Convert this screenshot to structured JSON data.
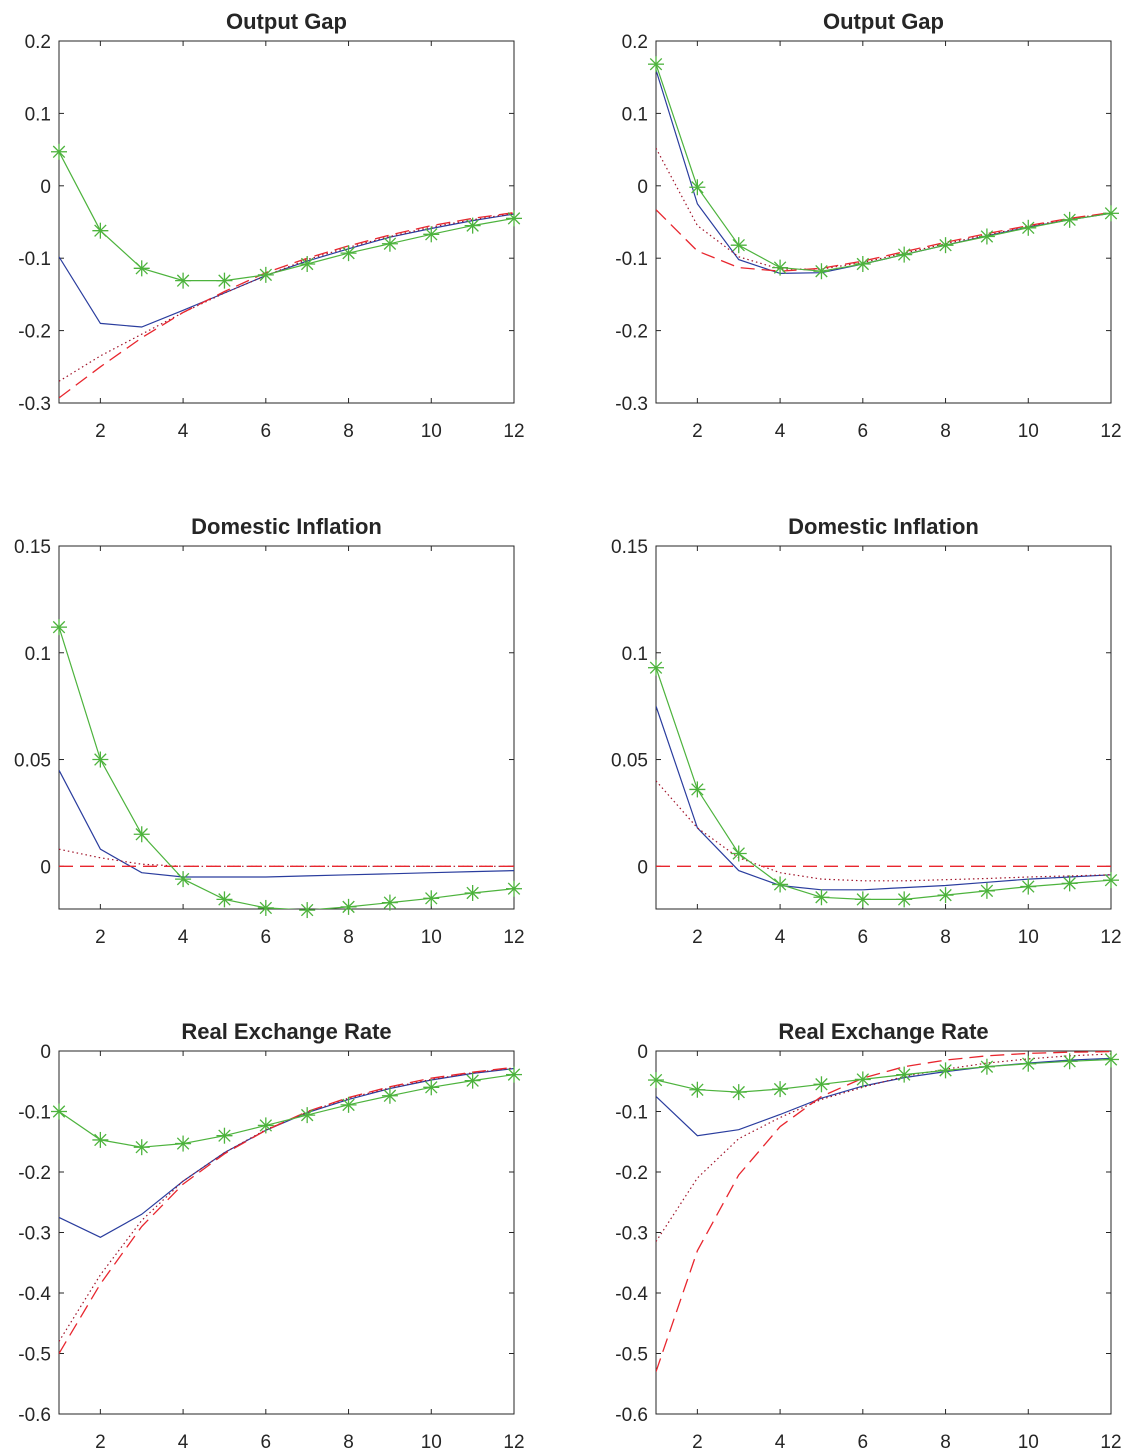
{
  "chart_data": [
    {
      "type": "line",
      "title": "Output Gap",
      "xlabel": "",
      "ylabel": "",
      "xlim": [
        1,
        12
      ],
      "ylim": [
        -0.3,
        0.2
      ],
      "xticks": [
        2,
        4,
        6,
        8,
        10,
        12
      ],
      "yticks": [
        -0.3,
        -0.2,
        -0.1,
        0,
        0.1,
        0.2
      ],
      "ytick_labels": [
        "-0.3",
        "-0.2",
        "-0.1",
        "0",
        "0.1",
        "0.2"
      ],
      "grid": false,
      "x": [
        1,
        2,
        3,
        4,
        5,
        6,
        7,
        8,
        9,
        10,
        11,
        12
      ],
      "series": [
        {
          "style": "solid",
          "color": "#2a3d9e",
          "values": [
            -0.098,
            -0.19,
            -0.195,
            -0.172,
            -0.148,
            -0.124,
            -0.104,
            -0.087,
            -0.071,
            -0.059,
            -0.048,
            -0.039
          ]
        },
        {
          "style": "dotted",
          "color": "#a0142a",
          "values": [
            -0.27,
            -0.235,
            -0.205,
            -0.175,
            -0.148,
            -0.124,
            -0.102,
            -0.085,
            -0.07,
            -0.057,
            -0.047,
            -0.038
          ]
        },
        {
          "style": "dashed",
          "color": "#e8262e",
          "values": [
            -0.293,
            -0.25,
            -0.21,
            -0.175,
            -0.146,
            -0.12,
            -0.1,
            -0.083,
            -0.068,
            -0.055,
            -0.045,
            -0.037
          ]
        },
        {
          "style": "marker",
          "color": "#4db33d",
          "values": [
            0.047,
            -0.062,
            -0.114,
            -0.131,
            -0.131,
            -0.123,
            -0.108,
            -0.093,
            -0.08,
            -0.067,
            -0.055,
            -0.045
          ]
        }
      ]
    },
    {
      "type": "line",
      "title": "Output Gap",
      "xlabel": "",
      "ylabel": "",
      "xlim": [
        1,
        12
      ],
      "ylim": [
        -0.3,
        0.2
      ],
      "xticks": [
        2,
        4,
        6,
        8,
        10,
        12
      ],
      "yticks": [
        -0.3,
        -0.2,
        -0.1,
        0,
        0.1,
        0.2
      ],
      "ytick_labels": [
        "-0.3",
        "-0.2",
        "-0.1",
        "0",
        "0.1",
        "0.2"
      ],
      "grid": false,
      "x": [
        1,
        2,
        3,
        4,
        5,
        6,
        7,
        8,
        9,
        10,
        11,
        12
      ],
      "series": [
        {
          "style": "solid",
          "color": "#2a3d9e",
          "values": [
            0.16,
            -0.025,
            -0.102,
            -0.121,
            -0.12,
            -0.108,
            -0.095,
            -0.082,
            -0.069,
            -0.057,
            -0.047,
            -0.038
          ]
        },
        {
          "style": "dotted",
          "color": "#a0142a",
          "values": [
            0.052,
            -0.055,
            -0.098,
            -0.115,
            -0.115,
            -0.106,
            -0.093,
            -0.08,
            -0.068,
            -0.056,
            -0.046,
            -0.037
          ]
        },
        {
          "style": "dashed",
          "color": "#e8262e",
          "values": [
            -0.033,
            -0.09,
            -0.113,
            -0.118,
            -0.114,
            -0.104,
            -0.091,
            -0.078,
            -0.066,
            -0.055,
            -0.045,
            -0.037
          ]
        },
        {
          "style": "marker",
          "color": "#4db33d",
          "values": [
            0.168,
            -0.002,
            -0.082,
            -0.113,
            -0.118,
            -0.108,
            -0.095,
            -0.082,
            -0.07,
            -0.058,
            -0.047,
            -0.038
          ]
        }
      ]
    },
    {
      "type": "line",
      "title": "Domestic Inflation",
      "xlabel": "",
      "ylabel": "",
      "xlim": [
        1,
        12
      ],
      "ylim": [
        -0.02,
        0.15
      ],
      "xticks": [
        2,
        4,
        6,
        8,
        10,
        12
      ],
      "yticks": [
        0,
        0.05,
        0.1,
        0.15
      ],
      "ytick_labels": [
        "0",
        "0.05",
        "0.1",
        "0.15"
      ],
      "grid": false,
      "x": [
        1,
        2,
        3,
        4,
        5,
        6,
        7,
        8,
        9,
        10,
        11,
        12
      ],
      "series": [
        {
          "style": "solid",
          "color": "#2a3d9e",
          "values": [
            0.045,
            0.008,
            -0.003,
            -0.005,
            -0.005,
            -0.005,
            -0.0045,
            -0.004,
            -0.0035,
            -0.003,
            -0.0025,
            -0.002
          ]
        },
        {
          "style": "dotted",
          "color": "#a0142a",
          "values": [
            0.008,
            0.004,
            0.001,
            0.0,
            0.0,
            0.0,
            0.0,
            0.0,
            0.0,
            0.0,
            0.0,
            0.0
          ]
        },
        {
          "style": "dashed",
          "color": "#e8262e",
          "values": [
            0,
            0,
            0,
            0,
            0,
            0,
            0,
            0,
            0,
            0,
            0,
            0
          ]
        },
        {
          "style": "marker",
          "color": "#4db33d",
          "values": [
            0.112,
            0.05,
            0.015,
            -0.006,
            -0.0155,
            -0.0195,
            -0.0205,
            -0.019,
            -0.017,
            -0.015,
            -0.0125,
            -0.0105
          ]
        }
      ]
    },
    {
      "type": "line",
      "title": "Domestic Inflation",
      "xlabel": "",
      "ylabel": "",
      "xlim": [
        1,
        12
      ],
      "ylim": [
        -0.02,
        0.15
      ],
      "xticks": [
        2,
        4,
        6,
        8,
        10,
        12
      ],
      "yticks": [
        0,
        0.05,
        0.1,
        0.15
      ],
      "ytick_labels": [
        "0",
        "0.05",
        "0.1",
        "0.15"
      ],
      "grid": false,
      "x": [
        1,
        2,
        3,
        4,
        5,
        6,
        7,
        8,
        9,
        10,
        11,
        12
      ],
      "series": [
        {
          "style": "solid",
          "color": "#2a3d9e",
          "values": [
            0.075,
            0.018,
            -0.002,
            -0.009,
            -0.011,
            -0.011,
            -0.01,
            -0.009,
            -0.0075,
            -0.006,
            -0.005,
            -0.004
          ]
        },
        {
          "style": "dotted",
          "color": "#a0142a",
          "values": [
            0.04,
            0.018,
            0.004,
            -0.003,
            -0.006,
            -0.0068,
            -0.0068,
            -0.0063,
            -0.0057,
            -0.005,
            -0.0045,
            -0.004
          ]
        },
        {
          "style": "dashed",
          "color": "#e8262e",
          "values": [
            0,
            0,
            0,
            0,
            0,
            0,
            0,
            0,
            0,
            0,
            0,
            0
          ]
        },
        {
          "style": "marker",
          "color": "#4db33d",
          "values": [
            0.093,
            0.036,
            0.006,
            -0.0085,
            -0.0145,
            -0.0155,
            -0.0155,
            -0.0135,
            -0.0115,
            -0.0095,
            -0.008,
            -0.0065
          ]
        }
      ]
    },
    {
      "type": "line",
      "title": "Real Exchange Rate",
      "xlabel": "",
      "ylabel": "",
      "xlim": [
        1,
        12
      ],
      "ylim": [
        -0.6,
        0
      ],
      "xticks": [
        2,
        4,
        6,
        8,
        10,
        12
      ],
      "yticks": [
        -0.6,
        -0.5,
        -0.4,
        -0.3,
        -0.2,
        -0.1,
        0
      ],
      "ytick_labels": [
        "-0.6",
        "-0.5",
        "-0.4",
        "-0.3",
        "-0.2",
        "-0.1",
        "0"
      ],
      "grid": false,
      "x": [
        1,
        2,
        3,
        4,
        5,
        6,
        7,
        8,
        9,
        10,
        11,
        12
      ],
      "series": [
        {
          "style": "solid",
          "color": "#2a3d9e",
          "values": [
            -0.275,
            -0.308,
            -0.27,
            -0.215,
            -0.168,
            -0.131,
            -0.102,
            -0.08,
            -0.062,
            -0.048,
            -0.037,
            -0.029
          ]
        },
        {
          "style": "dotted",
          "color": "#a0142a",
          "values": [
            -0.48,
            -0.37,
            -0.28,
            -0.215,
            -0.168,
            -0.13,
            -0.101,
            -0.078,
            -0.061,
            -0.047,
            -0.036,
            -0.028
          ]
        },
        {
          "style": "dashed",
          "color": "#e8262e",
          "values": [
            -0.5,
            -0.385,
            -0.29,
            -0.22,
            -0.17,
            -0.131,
            -0.1,
            -0.077,
            -0.059,
            -0.045,
            -0.035,
            -0.027
          ]
        },
        {
          "style": "marker",
          "color": "#4db33d",
          "values": [
            -0.1,
            -0.147,
            -0.159,
            -0.153,
            -0.14,
            -0.123,
            -0.106,
            -0.089,
            -0.074,
            -0.06,
            -0.049,
            -0.039
          ]
        }
      ]
    },
    {
      "type": "line",
      "title": "Real Exchange Rate",
      "xlabel": "",
      "ylabel": "",
      "xlim": [
        1,
        12
      ],
      "ylim": [
        -0.6,
        0
      ],
      "xticks": [
        2,
        4,
        6,
        8,
        10,
        12
      ],
      "yticks": [
        -0.6,
        -0.5,
        -0.4,
        -0.3,
        -0.2,
        -0.1,
        0
      ],
      "ytick_labels": [
        "-0.6",
        "-0.5",
        "-0.4",
        "-0.3",
        "-0.2",
        "-0.1",
        "0"
      ],
      "grid": false,
      "x": [
        1,
        2,
        3,
        4,
        5,
        6,
        7,
        8,
        9,
        10,
        11,
        12
      ],
      "series": [
        {
          "style": "solid",
          "color": "#2a3d9e",
          "values": [
            -0.075,
            -0.14,
            -0.13,
            -0.105,
            -0.078,
            -0.058,
            -0.044,
            -0.034,
            -0.026,
            -0.02,
            -0.015,
            -0.012
          ]
        },
        {
          "style": "dotted",
          "color": "#a0142a",
          "values": [
            -0.315,
            -0.21,
            -0.145,
            -0.11,
            -0.08,
            -0.06,
            -0.042,
            -0.03,
            -0.02,
            -0.013,
            -0.008,
            -0.005
          ]
        },
        {
          "style": "dashed",
          "color": "#e8262e",
          "values": [
            -0.53,
            -0.33,
            -0.205,
            -0.125,
            -0.075,
            -0.045,
            -0.026,
            -0.015,
            -0.008,
            -0.004,
            -0.002,
            -0.001
          ]
        },
        {
          "style": "marker",
          "color": "#4db33d",
          "values": [
            -0.048,
            -0.064,
            -0.068,
            -0.063,
            -0.055,
            -0.047,
            -0.039,
            -0.032,
            -0.026,
            -0.021,
            -0.017,
            -0.014
          ]
        }
      ]
    }
  ]
}
